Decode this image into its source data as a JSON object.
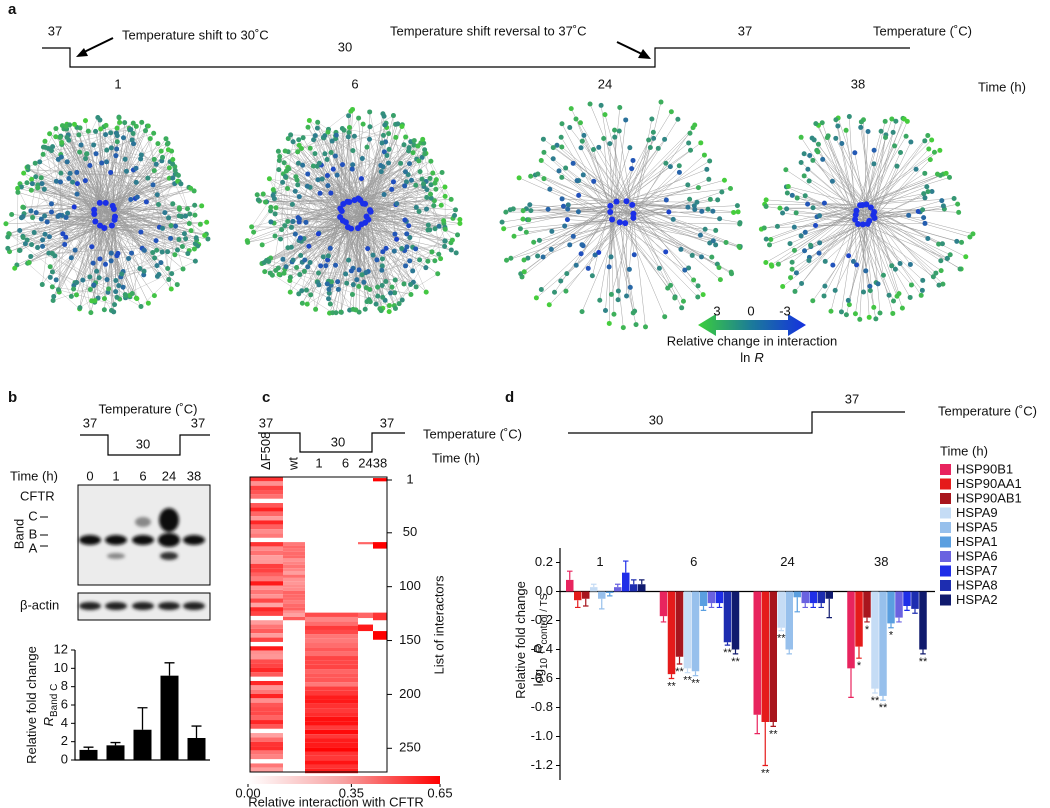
{
  "a": {
    "label": "a",
    "temperatures": [
      "37",
      "30",
      "37"
    ],
    "temperature_label": "Temperature  (˚C)",
    "shift_label": "Temperature shift to 30˚C",
    "reversal_label": "Temperature shift reversal to 37˚C",
    "times": [
      "1",
      "6",
      "24",
      "38"
    ],
    "time_label": "Time (h)",
    "legend": {
      "ticks": [
        3,
        0,
        -3
      ],
      "lim": [
        3,
        -3
      ],
      "title": "Relative change in interaction",
      "subtitle": "ln",
      "subtitle_symbol": "R"
    }
  },
  "b": {
    "label": "b",
    "temperature_label": "Temperature (˚C)",
    "temperatures": [
      "37",
      "30",
      "37"
    ],
    "time_label": "Time (h)",
    "times": [
      "0",
      "1",
      "6",
      "24",
      "38"
    ],
    "blot_label": "CFTR",
    "bands": [
      "C",
      "B",
      "A"
    ],
    "band_label": "Band",
    "loading_label": "β-actin"
  },
  "c": {
    "label": "c",
    "temperatures": [
      "37",
      "30",
      "37"
    ],
    "temperature_label": "Temperature (˚C)",
    "time_label": "Time (h)",
    "columns": [
      "ΔF508",
      "wt",
      "1",
      "6",
      "24",
      "38"
    ],
    "ylabel": "List of interactors",
    "yticks": [
      1,
      50,
      100,
      150,
      200,
      250
    ],
    "ylim": [
      1,
      272
    ],
    "colorbar": {
      "ticks": [
        {
          "value": 0,
          "label": "0.00"
        },
        0.35,
        0.65
      ],
      "lim": [
        0,
        0.65
      ],
      "label": "Relative interaction with CFTR"
    }
  },
  "d": {
    "label": "d",
    "temperatures": [
      "30",
      "37"
    ],
    "temperature_label": "Temperature (˚C)",
    "time_label": "Time (h)"
  },
  "chart_data": [
    {
      "type": "bar",
      "ylabel": "Relative fold change",
      "ylabel_symbol": "R",
      "ylabel_subscript": "Band C",
      "categories": [
        null,
        null,
        null,
        null,
        null
      ],
      "values": [
        1.1,
        1.6,
        3.3,
        9.2,
        2.4
      ],
      "errors": [
        0.3,
        0.3,
        2.4,
        1.4,
        1.3
      ],
      "color": "#000000",
      "ylim": [
        0,
        12
      ],
      "yticks": [
        0,
        2,
        4,
        6,
        8,
        10,
        12
      ]
    },
    {
      "type": "grouped_bar",
      "ylabel": "Relative fold change",
      "ylabel_log": "log",
      "ylabel_base": "10",
      "ylabel_symbol": "R",
      "ylabel_subscript": "control / TS",
      "categories": [
        "1",
        "6",
        "24",
        "38"
      ],
      "ylim": [
        -1.3,
        0.3
      ],
      "yticks": [
        -1.2,
        {
          "value": -1,
          "label": "-1.0"
        },
        -0.8,
        -0.6,
        -0.4,
        -0.2,
        {
          "value": 0,
          "label": "0.0"
        },
        0.2
      ],
      "series": [
        {
          "name": "HSP90B1",
          "color": "#e8245e",
          "values": [
            0.08,
            -0.17,
            -0.85,
            -0.53
          ],
          "errors": [
            0.06,
            0.04,
            0.13,
            0.2
          ],
          "annotations": [
            null,
            null,
            null,
            null
          ]
        },
        {
          "name": "HSP90AA1",
          "color": "#e51b1b",
          "values": [
            -0.06,
            -0.57,
            -0.9,
            -0.38
          ],
          "errors": [
            0.05,
            0.03,
            0.3,
            0.08
          ],
          "annotations": [
            null,
            "**",
            "**",
            "*"
          ]
        },
        {
          "name": "HSP90AB1",
          "color": "#a8151d",
          "values": [
            -0.05,
            -0.45,
            -0.9,
            -0.18
          ],
          "errors": [
            0.05,
            0.05,
            0.03,
            0.03
          ],
          "annotations": [
            null,
            "**",
            "**",
            "*"
          ]
        },
        {
          "name": "HSPA9",
          "color": "#c5dcf5",
          "values": [
            0.03,
            -0.53,
            -0.25,
            -0.67
          ],
          "errors": [
            0.02,
            0.03,
            0.02,
            0.03
          ],
          "annotations": [
            null,
            "**",
            "**",
            "**"
          ]
        },
        {
          "name": "HSPA5",
          "color": "#97c0ec",
          "values": [
            -0.05,
            -0.55,
            -0.4,
            -0.72
          ],
          "errors": [
            0.07,
            0.03,
            0.03,
            0.03
          ],
          "annotations": [
            null,
            "**",
            null,
            "**"
          ]
        },
        {
          "name": "HSPA1",
          "color": "#5a9fe0",
          "values": [
            -0.01,
            -0.1,
            -0.04,
            -0.22
          ],
          "errors": [
            0.02,
            0.03,
            0.1,
            0.03
          ],
          "annotations": [
            null,
            null,
            null,
            "*"
          ]
        },
        {
          "name": "HSPA6",
          "color": "#6a62e0",
          "values": [
            0.03,
            -0.08,
            -0.08,
            -0.18
          ],
          "errors": [
            0.02,
            0.03,
            0.03,
            0.03
          ],
          "annotations": [
            null,
            null,
            null,
            null
          ]
        },
        {
          "name": "HSPA7",
          "color": "#1f2ee8",
          "values": [
            0.13,
            -0.08,
            -0.08,
            -0.1
          ],
          "errors": [
            0.08,
            0.03,
            0.03,
            0.03
          ],
          "annotations": [
            null,
            null,
            null,
            null
          ]
        },
        {
          "name": "HSPA8",
          "color": "#1d2db0",
          "values": [
            0.05,
            -0.35,
            -0.08,
            -0.12
          ],
          "errors": [
            0.03,
            0.02,
            0.03,
            0.03
          ],
          "annotations": [
            null,
            "**",
            null,
            null
          ]
        },
        {
          "name": "HSPA2",
          "color": "#101a6e",
          "values": [
            0.05,
            -0.4,
            -0.05,
            -0.4
          ],
          "errors": [
            0.03,
            0.03,
            0.13,
            0.03
          ],
          "annotations": [
            null,
            "**",
            null,
            "**"
          ]
        }
      ]
    }
  ]
}
